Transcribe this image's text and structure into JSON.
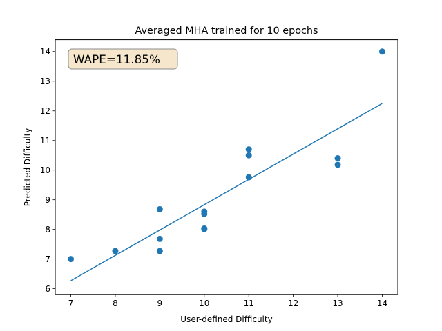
{
  "chart_data": {
    "type": "scatter",
    "title": "Averaged MHA trained for 10 epochs",
    "xlabel": "User-defined Difficulty",
    "ylabel": "Predicted Difficulty",
    "xlim": [
      6.65,
      14.35
    ],
    "ylim": [
      5.8,
      14.4
    ],
    "xticks": [
      7,
      8,
      9,
      10,
      11,
      12,
      13,
      14
    ],
    "yticks": [
      6,
      7,
      8,
      9,
      10,
      11,
      12,
      13,
      14
    ],
    "grid": false,
    "annotation": "WAPE=11.85%",
    "points": {
      "x": [
        7,
        8,
        9,
        9,
        9,
        10,
        10,
        10,
        10,
        11,
        11,
        11,
        13,
        13,
        14
      ],
      "y": [
        7.0,
        7.27,
        8.68,
        7.68,
        7.27,
        8.6,
        8.52,
        8.03,
        8.01,
        10.7,
        10.5,
        9.76,
        10.4,
        10.18,
        14.0
      ]
    },
    "fit_line": {
      "x": [
        7,
        14
      ],
      "y": [
        6.27,
        12.25
      ]
    },
    "colors": {
      "points": "#1f77b4",
      "line": "#1f77b4",
      "annotation_face": "#f5e6cc",
      "annotation_edge": "#8c8c8c"
    }
  }
}
